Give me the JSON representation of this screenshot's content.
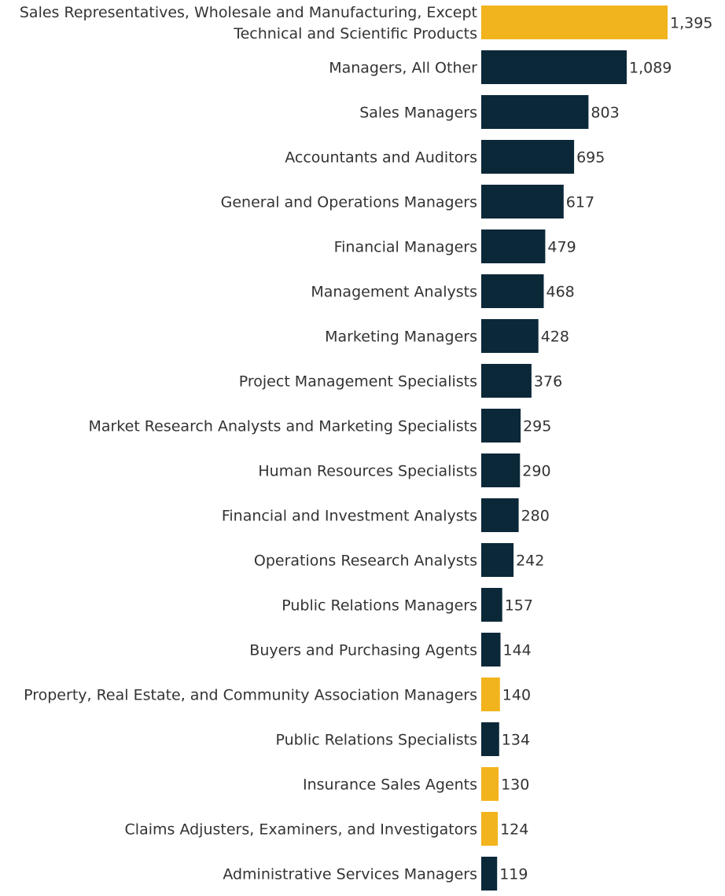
{
  "chart_data": {
    "type": "bar",
    "orientation": "horizontal",
    "title": "",
    "xlabel": "",
    "ylabel": "",
    "grid": false,
    "legend": "none",
    "categories": [
      [
        "Sales Representatives, Wholesale and Manufacturing, Except",
        "Technical and Scientific Products"
      ],
      [
        "Managers, All Other"
      ],
      [
        "Sales Managers"
      ],
      [
        "Accountants and Auditors"
      ],
      [
        "General and Operations Managers"
      ],
      [
        "Financial Managers"
      ],
      [
        "Management Analysts"
      ],
      [
        "Marketing Managers"
      ],
      [
        "Project Management Specialists"
      ],
      [
        "Market Research Analysts and Marketing Specialists"
      ],
      [
        "Human Resources Specialists"
      ],
      [
        "Financial and Investment Analysts"
      ],
      [
        "Operations Research Analysts"
      ],
      [
        "Public Relations Managers"
      ],
      [
        "Buyers and Purchasing Agents"
      ],
      [
        "Property, Real Estate, and Community Association Managers"
      ],
      [
        "Public Relations Specialists"
      ],
      [
        "Insurance Sales Agents"
      ],
      [
        "Claims Adjusters, Examiners, and Investigators"
      ],
      [
        "Administrative Services Managers"
      ]
    ],
    "values": [
      1395,
      1089,
      803,
      695,
      617,
      479,
      468,
      428,
      376,
      295,
      290,
      280,
      242,
      157,
      144,
      140,
      134,
      130,
      124,
      119
    ],
    "value_labels": [
      "1,395",
      "1,089",
      "803",
      "695",
      "617",
      "479",
      "468",
      "428",
      "376",
      "295",
      "290",
      "280",
      "242",
      "157",
      "144",
      "140",
      "134",
      "130",
      "124",
      "119"
    ],
    "highlight": [
      true,
      false,
      false,
      false,
      false,
      false,
      false,
      false,
      false,
      false,
      false,
      false,
      false,
      false,
      false,
      true,
      false,
      true,
      true,
      false
    ],
    "xlim": [
      0,
      1395
    ],
    "colors": {
      "default": "#0b2838",
      "highlight": "#f2b41c",
      "text": "#333333"
    }
  }
}
